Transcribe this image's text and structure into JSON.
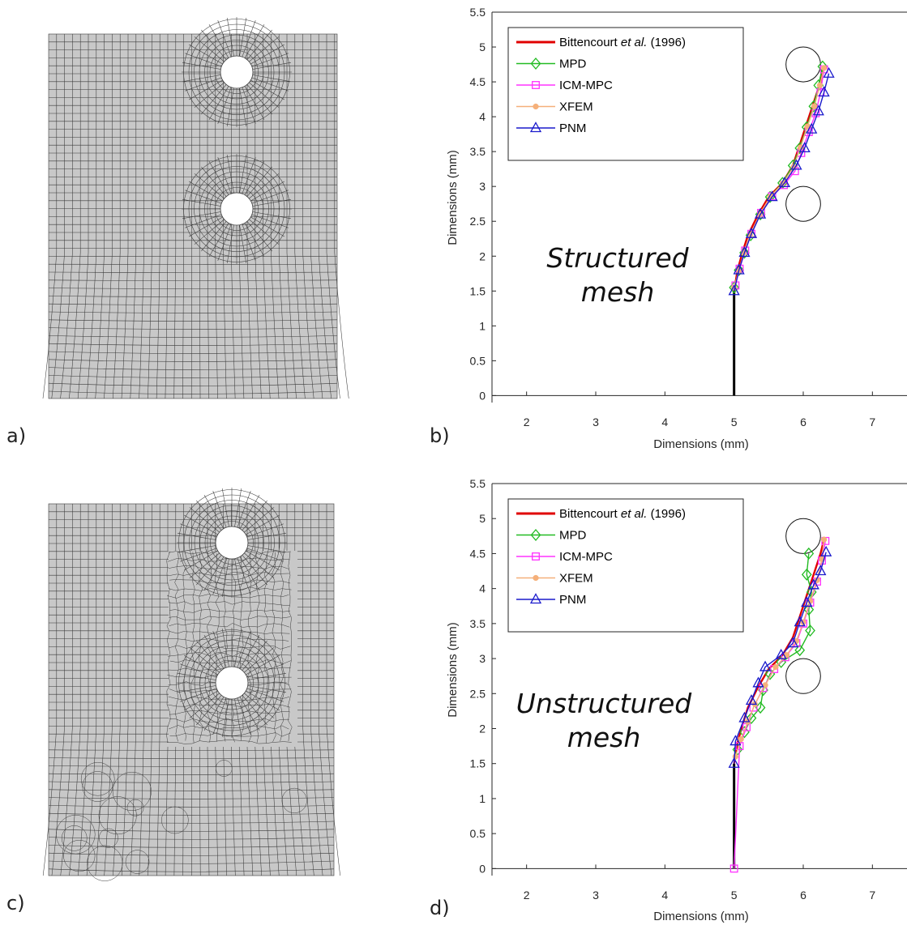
{
  "panels": [
    {
      "id": "a",
      "label": "a)",
      "kind": "mesh",
      "mesh_style": "structured"
    },
    {
      "id": "b",
      "label": "b)",
      "kind": "chart",
      "chart_index": 0
    },
    {
      "id": "c",
      "label": "c)",
      "kind": "mesh",
      "mesh_style": "unstructured"
    },
    {
      "id": "d",
      "label": "d)",
      "kind": "chart",
      "chart_index": 1
    }
  ],
  "colors": {
    "mesh_fill": "#c8c8c8",
    "mesh_line": "#3a3a3a",
    "bittencourt": "#e00000",
    "mpd": "#22bb22",
    "icm": "#ff33ff",
    "xfem": "#f5b07a",
    "pnm": "#1a1acc",
    "crack": "#000000"
  },
  "chart_data": [
    {
      "type": "line",
      "annotation": [
        "Structured",
        "mesh"
      ],
      "xlabel": "Dimensions (mm)",
      "ylabel": "Dimensions (mm)",
      "xlim": [
        1.5,
        7.5
      ],
      "ylim": [
        -0.1,
        5.5
      ],
      "xticks": [
        "2",
        "3",
        "4",
        "5",
        "6",
        "7"
      ],
      "yticks": [
        "0",
        "0.5",
        "1",
        "1.5",
        "2",
        "2.5",
        "3",
        "3.5",
        "4",
        "4.5",
        "5",
        "5.5"
      ],
      "holes": [
        {
          "cx": 6.0,
          "cy": 4.75,
          "r": 0.25
        },
        {
          "cx": 6.0,
          "cy": 2.75,
          "r": 0.25
        }
      ],
      "initial_crack": {
        "x": [
          5.0,
          5.0
        ],
        "y": [
          0.0,
          1.5
        ]
      },
      "legend": [
        {
          "key": "bittencourt",
          "parts": [
            "Bittencourt ",
            "et al.",
            " (1996)"
          ],
          "marker": "none"
        },
        {
          "key": "mpd",
          "parts": [
            "MPD"
          ],
          "marker": "diamond"
        },
        {
          "key": "icm",
          "parts": [
            "ICM-MPC"
          ],
          "marker": "square"
        },
        {
          "key": "xfem",
          "parts": [
            "XFEM"
          ],
          "marker": "dot"
        },
        {
          "key": "pnm",
          "parts": [
            "PNM"
          ],
          "marker": "triangle"
        }
      ],
      "series": [
        {
          "key": "bittencourt",
          "name": "Bittencourt et al. (1996)",
          "x": [
            5.0,
            5.05,
            5.12,
            5.2,
            5.35,
            5.5,
            5.7,
            5.85,
            5.95,
            6.05,
            6.15,
            6.25,
            6.3
          ],
          "y": [
            1.5,
            1.8,
            2.05,
            2.3,
            2.6,
            2.85,
            3.05,
            3.3,
            3.6,
            3.9,
            4.2,
            4.5,
            4.7
          ]
        },
        {
          "key": "mpd",
          "name": "MPD",
          "x": [
            5.0,
            5.07,
            5.15,
            5.24,
            5.38,
            5.52,
            5.7,
            5.85,
            5.95,
            6.05,
            6.15,
            6.22,
            6.28
          ],
          "y": [
            1.55,
            1.8,
            2.05,
            2.3,
            2.6,
            2.85,
            3.05,
            3.3,
            3.55,
            3.85,
            4.15,
            4.45,
            4.72
          ]
        },
        {
          "key": "icm",
          "name": "ICM-MPC",
          "x": [
            5.02,
            5.08,
            5.16,
            5.25,
            5.39,
            5.55,
            5.72,
            5.88,
            5.97,
            6.08,
            6.18,
            6.25,
            6.3
          ],
          "y": [
            1.58,
            1.82,
            2.08,
            2.32,
            2.62,
            2.86,
            3.02,
            3.22,
            3.48,
            3.78,
            4.05,
            4.35,
            4.68
          ]
        },
        {
          "key": "xfem",
          "name": "XFEM",
          "x": [
            5.0,
            5.07,
            5.14,
            5.23,
            5.37,
            5.52,
            5.7,
            5.86,
            5.96,
            6.06,
            6.16,
            6.24,
            6.3
          ],
          "y": [
            1.55,
            1.8,
            2.05,
            2.3,
            2.6,
            2.85,
            3.04,
            3.28,
            3.56,
            3.86,
            4.15,
            4.45,
            4.7
          ]
        },
        {
          "key": "pnm",
          "name": "PNM",
          "x": [
            5.0,
            5.07,
            5.15,
            5.25,
            5.38,
            5.55,
            5.73,
            5.9,
            6.02,
            6.12,
            6.22,
            6.3,
            6.37
          ],
          "y": [
            1.5,
            1.8,
            2.05,
            2.32,
            2.6,
            2.85,
            3.05,
            3.3,
            3.55,
            3.82,
            4.08,
            4.35,
            4.62
          ]
        }
      ]
    },
    {
      "type": "line",
      "annotation": [
        "Unstructured",
        "mesh"
      ],
      "xlabel": "Dimensions (mm)",
      "ylabel": "Dimensions (mm)",
      "xlim": [
        1.5,
        7.5
      ],
      "ylim": [
        -0.1,
        5.5
      ],
      "xticks": [
        "2",
        "3",
        "4",
        "5",
        "6",
        "7"
      ],
      "yticks": [
        "0",
        "0.5",
        "1",
        "1.5",
        "2",
        "2.5",
        "3",
        "3.5",
        "4",
        "4.5",
        "5",
        "5.5"
      ],
      "holes": [
        {
          "cx": 6.0,
          "cy": 4.75,
          "r": 0.25
        },
        {
          "cx": 6.0,
          "cy": 2.75,
          "r": 0.25
        }
      ],
      "initial_crack": {
        "x": [
          5.0,
          5.0
        ],
        "y": [
          0.0,
          1.5
        ]
      },
      "legend": [
        {
          "key": "bittencourt",
          "parts": [
            "Bittencourt ",
            "et al.",
            " (1996)"
          ],
          "marker": "none"
        },
        {
          "key": "mpd",
          "parts": [
            "MPD"
          ],
          "marker": "diamond"
        },
        {
          "key": "icm",
          "parts": [
            "ICM-MPC"
          ],
          "marker": "square"
        },
        {
          "key": "xfem",
          "parts": [
            "XFEM"
          ],
          "marker": "dot"
        },
        {
          "key": "pnm",
          "parts": [
            "PNM"
          ],
          "marker": "triangle"
        }
      ],
      "series": [
        {
          "key": "bittencourt",
          "name": "Bittencourt et al. (1996)",
          "x": [
            5.0,
            5.05,
            5.12,
            5.2,
            5.35,
            5.5,
            5.7,
            5.85,
            5.95,
            6.05,
            6.15,
            6.25,
            6.3
          ],
          "y": [
            1.5,
            1.8,
            2.05,
            2.3,
            2.6,
            2.85,
            3.05,
            3.3,
            3.6,
            3.9,
            4.2,
            4.5,
            4.7
          ]
        },
        {
          "key": "mpd",
          "name": "MPD",
          "x": [
            5.05,
            5.15,
            5.25,
            5.38,
            5.42,
            5.52,
            5.68,
            5.95,
            6.1,
            6.08,
            6.12,
            6.05,
            6.08
          ],
          "y": [
            1.7,
            1.95,
            2.15,
            2.3,
            2.55,
            2.78,
            2.95,
            3.12,
            3.4,
            3.7,
            3.95,
            4.2,
            4.5
          ]
        },
        {
          "key": "icm",
          "name": "ICM-MPC",
          "x": [
            5.0,
            5.08,
            5.18,
            5.28,
            5.42,
            5.58,
            5.74,
            5.9,
            6.0,
            6.1,
            6.2,
            6.27,
            6.32
          ],
          "y": [
            0.0,
            1.75,
            2.02,
            2.3,
            2.58,
            2.85,
            3.02,
            3.22,
            3.5,
            3.8,
            4.1,
            4.4,
            4.68
          ]
        },
        {
          "key": "xfem",
          "name": "XFEM",
          "x": [
            5.02,
            5.1,
            5.2,
            5.3,
            5.45,
            5.6,
            5.76,
            5.9,
            6.0,
            6.1,
            6.2,
            6.27,
            6.3
          ],
          "y": [
            1.6,
            1.85,
            2.1,
            2.35,
            2.62,
            2.88,
            3.05,
            3.25,
            3.52,
            3.82,
            4.12,
            4.42,
            4.7
          ]
        },
        {
          "key": "pnm",
          "name": "PNM",
          "x": [
            5.0,
            5.02,
            5.15,
            5.25,
            5.35,
            5.45,
            5.68,
            5.85,
            5.95,
            6.05,
            6.15,
            6.25,
            6.33
          ],
          "y": [
            1.5,
            1.82,
            2.15,
            2.4,
            2.65,
            2.88,
            3.05,
            3.22,
            3.52,
            3.8,
            4.05,
            4.25,
            4.52
          ]
        }
      ]
    }
  ]
}
